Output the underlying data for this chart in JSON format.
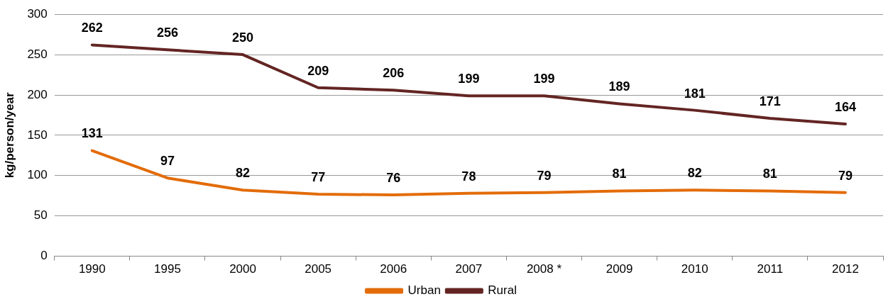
{
  "chart_data": {
    "type": "line",
    "ylabel": "kg/person/year",
    "categories": [
      "1990",
      "1995",
      "2000",
      "2005",
      "2006",
      "2007",
      "2008 *",
      "2009",
      "2010",
      "2011",
      "2012"
    ],
    "series": [
      {
        "name": "Urban",
        "color": "#e36c09",
        "values": [
          131,
          97,
          82,
          77,
          76,
          78,
          79,
          81,
          82,
          81,
          79
        ]
      },
      {
        "name": "Rural",
        "color": "#632523",
        "values": [
          262,
          256,
          250,
          209,
          206,
          199,
          199,
          189,
          181,
          171,
          164
        ]
      }
    ],
    "ylim": [
      0,
      300
    ],
    "yticks": [
      0,
      50,
      100,
      150,
      200,
      250,
      300
    ],
    "grid": "y",
    "legend": "bottom",
    "data_labels": true,
    "marker": "none",
    "line_style": "solid"
  }
}
